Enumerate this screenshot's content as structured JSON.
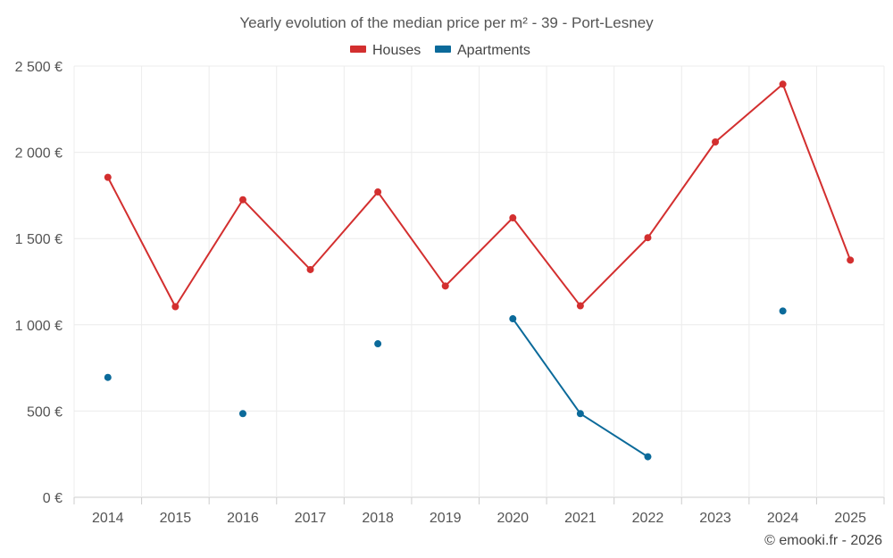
{
  "chart_data": {
    "type": "line",
    "title": "Yearly evolution of the median price per m² - 39 - Port-Lesney",
    "categories": [
      "2014",
      "2015",
      "2016",
      "2017",
      "2018",
      "2019",
      "2020",
      "2021",
      "2022",
      "2023",
      "2024",
      "2025"
    ],
    "y_ticks": [
      0,
      500,
      1000,
      1500,
      2000,
      2500
    ],
    "y_tick_labels": [
      "0 €",
      "500 €",
      "1 000 €",
      "1 500 €",
      "2 000 €",
      "2 500 €"
    ],
    "ylim": [
      0,
      2500
    ],
    "xlabel": "",
    "ylabel": "",
    "grid": true,
    "legend_position": "top-center",
    "series": [
      {
        "name": "Houses",
        "color": "#d32f2f",
        "values": [
          1855,
          1105,
          1725,
          1320,
          1770,
          1225,
          1620,
          1110,
          1505,
          2060,
          2395,
          1375
        ]
      },
      {
        "name": "Apartments",
        "color": "#0b6a9a",
        "values": [
          695,
          null,
          485,
          null,
          890,
          null,
          1035,
          485,
          235,
          null,
          1080,
          null
        ]
      }
    ]
  },
  "credit": "© emooki.fr - 2026"
}
